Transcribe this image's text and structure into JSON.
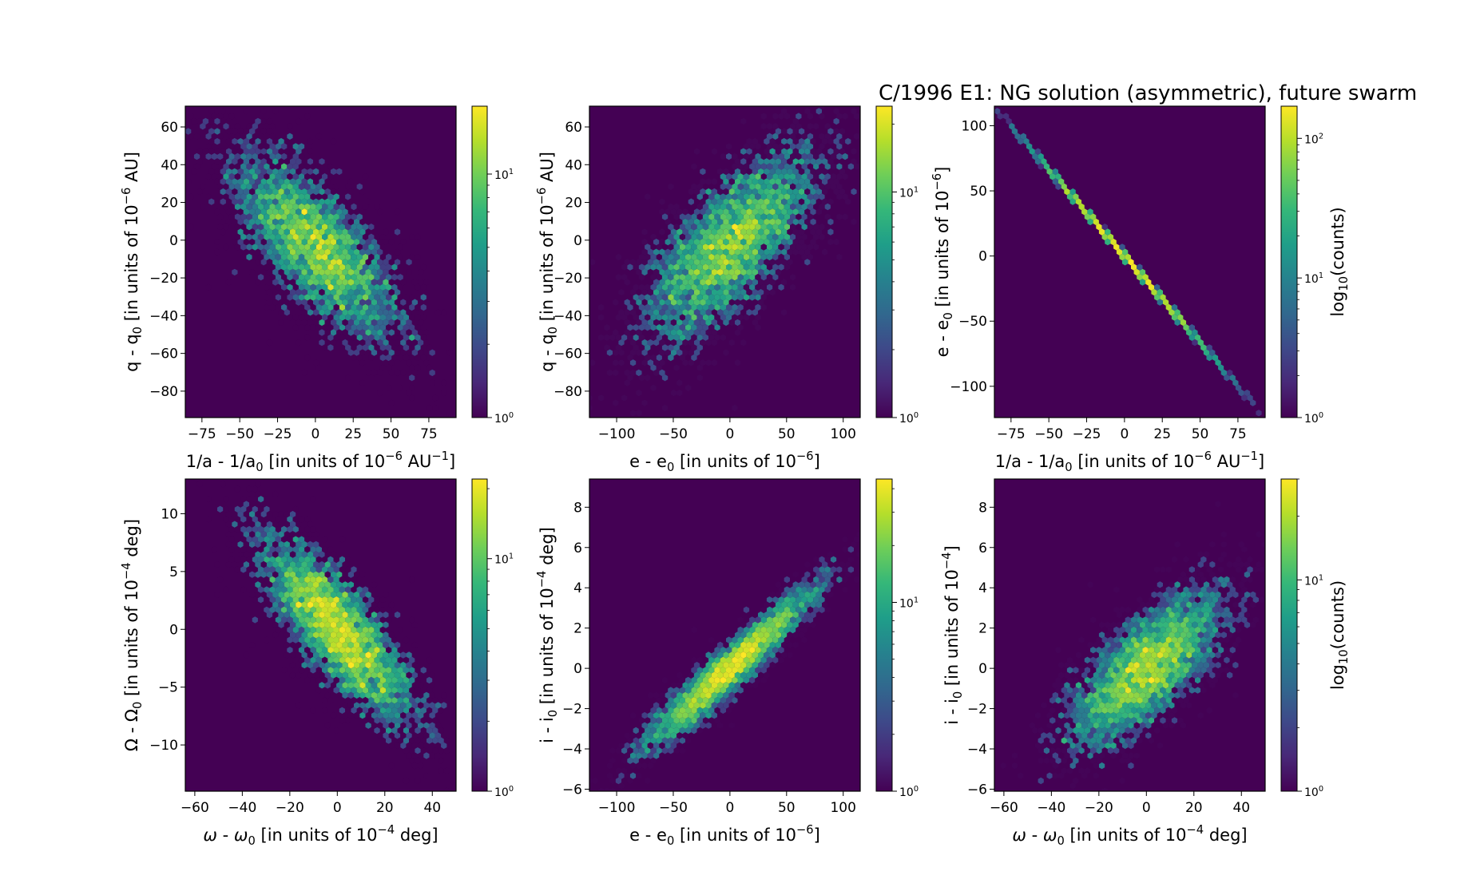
{
  "figure": {
    "title": "C/1996 E1:  NG solution (asymmetric), future swarm"
  },
  "colormap": {
    "name": "viridis",
    "stops": [
      "#440154",
      "#482878",
      "#3e4989",
      "#31688e",
      "#26828e",
      "#1f9e89",
      "#35b779",
      "#6ece58",
      "#b5de2b",
      "#fde725"
    ],
    "background": "#440154"
  },
  "chart_data": [
    {
      "type": "heatmap",
      "subtype": "hexbin",
      "panel": "top-left",
      "xlabel": "1/a - 1/a0 [in units of 10^-6 AU^-1]",
      "xlabel_parts": {
        "pre": "1/a - 1/a",
        "sub": "0",
        "mid": " [in units of 10",
        "sup": "−6",
        "post": " AU",
        "sup2": "−1",
        "end": "]"
      },
      "ylabel": "q - q0 [in units of 10^-6 AU]",
      "ylabel_parts": {
        "pre": "q - q",
        "sub": "0",
        "mid": " [in units of 10",
        "sup": "−6",
        "post": " AU]"
      },
      "xlim": [
        -86,
        93
      ],
      "ylim": [
        -94,
        71
      ],
      "xticks": [
        -75,
        -50,
        -25,
        0,
        25,
        50,
        75
      ],
      "xtick_labels": [
        "−75",
        "−50",
        "−25",
        "0",
        "25",
        "50",
        "75"
      ],
      "yticks": [
        -80,
        -60,
        -40,
        -20,
        0,
        20,
        40,
        60
      ],
      "ytick_labels": [
        "−80",
        "−60",
        "−40",
        "−20",
        "0",
        "20",
        "40",
        "60"
      ],
      "colorbar": {
        "scale": "log",
        "vmin": 1,
        "vmax": 19,
        "tick_values": [
          1,
          10
        ],
        "tick_labels": [
          {
            "base": "10",
            "exp": "0"
          },
          {
            "base": "10",
            "exp": "1"
          }
        ],
        "label": ""
      },
      "distribution": {
        "mean_x": 0,
        "mean_y": -3,
        "sd_x": 28,
        "sd_y": 25,
        "correlation": -0.72,
        "samples": 4500,
        "peak_count": 19
      }
    },
    {
      "type": "heatmap",
      "subtype": "hexbin",
      "panel": "top-middle",
      "xlabel": "e - e0 [in units of 10^-6]",
      "xlabel_parts": {
        "pre": "e - e",
        "sub": "0",
        "mid": " [in units of 10",
        "sup": "−6",
        "post": "]"
      },
      "ylabel": "q - q0 [in units of 10^-6 AU]",
      "ylabel_parts": {
        "pre": "q - q",
        "sub": "0",
        "mid": " [in units of 10",
        "sup": "−6",
        "post": " AU]"
      },
      "xlim": [
        -124,
        115
      ],
      "ylim": [
        -94,
        71
      ],
      "xticks": [
        -100,
        -50,
        0,
        50,
        100
      ],
      "xtick_labels": [
        "−100",
        "−50",
        "0",
        "50",
        "100"
      ],
      "yticks": [
        -80,
        -60,
        -40,
        -20,
        0,
        20,
        40,
        60
      ],
      "ytick_labels": [
        "−80",
        "−60",
        "−40",
        "−20",
        "0",
        "20",
        "40",
        "60"
      ],
      "colorbar": {
        "scale": "log",
        "vmin": 1,
        "vmax": 24,
        "tick_values": [
          1,
          10
        ],
        "tick_labels": [
          {
            "base": "10",
            "exp": "0"
          },
          {
            "base": "10",
            "exp": "1"
          }
        ],
        "label": ""
      },
      "distribution": {
        "mean_x": 0,
        "mean_y": -3,
        "sd_x": 38,
        "sd_y": 25,
        "correlation": 0.72,
        "samples": 4500,
        "peak_count": 24
      }
    },
    {
      "type": "heatmap",
      "subtype": "hexbin",
      "panel": "top-right",
      "xlabel": "1/a - 1/a0 [in units of 10^-6 AU^-1]",
      "xlabel_parts": {
        "pre": "1/a - 1/a",
        "sub": "0",
        "mid": " [in units of 10",
        "sup": "−6",
        "post": " AU",
        "sup2": "−1",
        "end": "]"
      },
      "ylabel": "e - e0 [in units of 10^-6]",
      "ylabel_parts": {
        "pre": "e - e",
        "sub": "0",
        "mid": " [in units of 10",
        "sup": "−6",
        "post": "]"
      },
      "xlim": [
        -86,
        93
      ],
      "ylim": [
        -124,
        115
      ],
      "xticks": [
        -75,
        -50,
        -25,
        0,
        25,
        50,
        75
      ],
      "xtick_labels": [
        "−75",
        "−50",
        "−25",
        "0",
        "25",
        "50",
        "75"
      ],
      "yticks": [
        -100,
        -50,
        0,
        50,
        100
      ],
      "ytick_labels": [
        "−100",
        "−50",
        "0",
        "50",
        "100"
      ],
      "colorbar": {
        "scale": "log",
        "vmin": 1,
        "vmax": 170,
        "tick_values": [
          1,
          10,
          100
        ],
        "tick_labels": [
          {
            "base": "10",
            "exp": "0"
          },
          {
            "base": "10",
            "exp": "1"
          },
          {
            "base": "10",
            "exp": "2"
          }
        ],
        "label": "log10(counts)",
        "label_parts": {
          "pre": "log",
          "sub": "10",
          "post": "(counts)"
        }
      },
      "distribution": {
        "mean_x": 0,
        "mean_y": 0,
        "sd_x": 28,
        "sd_y": 37,
        "correlation": -0.9995,
        "samples": 4500,
        "peak_count": 170,
        "slope": -1.33
      }
    },
    {
      "type": "heatmap",
      "subtype": "hexbin",
      "panel": "bottom-left",
      "xlabel": "ω - ω0 [in units of 10^-4 deg]",
      "xlabel_parts": {
        "pre": "ω - ω",
        "sub": "0",
        "mid": " [in units of 10",
        "sup": "−4",
        "post": " deg]",
        "italic_symbol": true
      },
      "ylabel": "Ω - Ω0 [in units of 10^-4 deg]",
      "ylabel_parts": {
        "pre": "Ω - Ω",
        "sub": "0",
        "mid": " [in units of 10",
        "sup": "−4",
        "post": " deg]"
      },
      "xlim": [
        -64,
        50
      ],
      "ylim": [
        -14,
        13
      ],
      "xticks": [
        -60,
        -40,
        -20,
        0,
        20,
        40
      ],
      "xtick_labels": [
        "−60",
        "−40",
        "−20",
        "0",
        "20",
        "40"
      ],
      "yticks": [
        -10,
        -5,
        0,
        5,
        10
      ],
      "ytick_labels": [
        "−10",
        "−5",
        "0",
        "5",
        "10"
      ],
      "colorbar": {
        "scale": "log",
        "vmin": 1,
        "vmax": 22,
        "tick_values": [
          1,
          10
        ],
        "tick_labels": [
          {
            "base": "10",
            "exp": "0"
          },
          {
            "base": "10",
            "exp": "1"
          }
        ],
        "label": ""
      },
      "distribution": {
        "mean_x": 0,
        "mean_y": 0,
        "sd_x": 16,
        "sd_y": 4,
        "correlation": -0.8,
        "samples": 4500,
        "peak_count": 22
      }
    },
    {
      "type": "heatmap",
      "subtype": "hexbin",
      "panel": "bottom-middle",
      "xlabel": "e - e0 [in units of 10^-6]",
      "xlabel_parts": {
        "pre": "e - e",
        "sub": "0",
        "mid": " [in units of 10",
        "sup": "−6",
        "post": "]"
      },
      "ylabel": "i - i0 [in units of 10^-4 deg]",
      "ylabel_parts": {
        "pre": "i - i",
        "sub": "0",
        "mid": " [in units of 10",
        "sup": "−4",
        "post": " deg]"
      },
      "xlim": [
        -124,
        115
      ],
      "ylim": [
        -6.1,
        9.4
      ],
      "xticks": [
        -100,
        -50,
        0,
        50,
        100
      ],
      "xtick_labels": [
        "−100",
        "−50",
        "0",
        "50",
        "100"
      ],
      "yticks": [
        -6,
        -4,
        -2,
        0,
        2,
        4,
        6,
        8
      ],
      "ytick_labels": [
        "−6",
        "−4",
        "−2",
        "0",
        "2",
        "4",
        "6",
        "8"
      ],
      "colorbar": {
        "scale": "log",
        "vmin": 1,
        "vmax": 45,
        "tick_values": [
          1,
          10
        ],
        "tick_labels": [
          {
            "base": "10",
            "exp": "0"
          },
          {
            "base": "10",
            "exp": "1"
          }
        ],
        "label": ""
      },
      "distribution": {
        "mean_x": 0,
        "mean_y": 0,
        "sd_x": 36,
        "sd_y": 1.9,
        "correlation": 0.95,
        "samples": 4500,
        "peak_count": 45
      }
    },
    {
      "type": "heatmap",
      "subtype": "hexbin",
      "panel": "bottom-right",
      "xlabel": "ω - ω0 [in units of 10^-4 deg]",
      "xlabel_parts": {
        "pre": "ω - ω",
        "sub": "0",
        "mid": " [in units of 10",
        "sup": "−4",
        "post": " deg]",
        "italic_symbol": true
      },
      "ylabel": "i - i0 [in units of 10^-4]",
      "ylabel_parts": {
        "pre": "i - i",
        "sub": "0",
        "mid": " [in units of 10",
        "sup": "−4",
        "post": "]"
      },
      "xlim": [
        -64,
        50
      ],
      "ylim": [
        -6.1,
        9.4
      ],
      "xticks": [
        -60,
        -40,
        -20,
        0,
        20,
        40
      ],
      "xtick_labels": [
        "−60",
        "−40",
        "−20",
        "0",
        "20",
        "40"
      ],
      "yticks": [
        -6,
        -4,
        -2,
        0,
        2,
        4,
        6,
        8
      ],
      "ytick_labels": [
        "−6",
        "−4",
        "−2",
        "0",
        "2",
        "4",
        "6",
        "8"
      ],
      "colorbar": {
        "scale": "log",
        "vmin": 1,
        "vmax": 30,
        "tick_values": [
          1,
          10
        ],
        "tick_labels": [
          {
            "base": "10",
            "exp": "0"
          },
          {
            "base": "10",
            "exp": "1"
          }
        ],
        "label": "log10(counts)",
        "label_parts": {
          "pre": "log",
          "sub": "10",
          "post": "(counts)"
        }
      },
      "distribution": {
        "mean_x": 0,
        "mean_y": 0,
        "sd_x": 16,
        "sd_y": 1.9,
        "correlation": 0.72,
        "samples": 4500,
        "peak_count": 30
      }
    }
  ]
}
